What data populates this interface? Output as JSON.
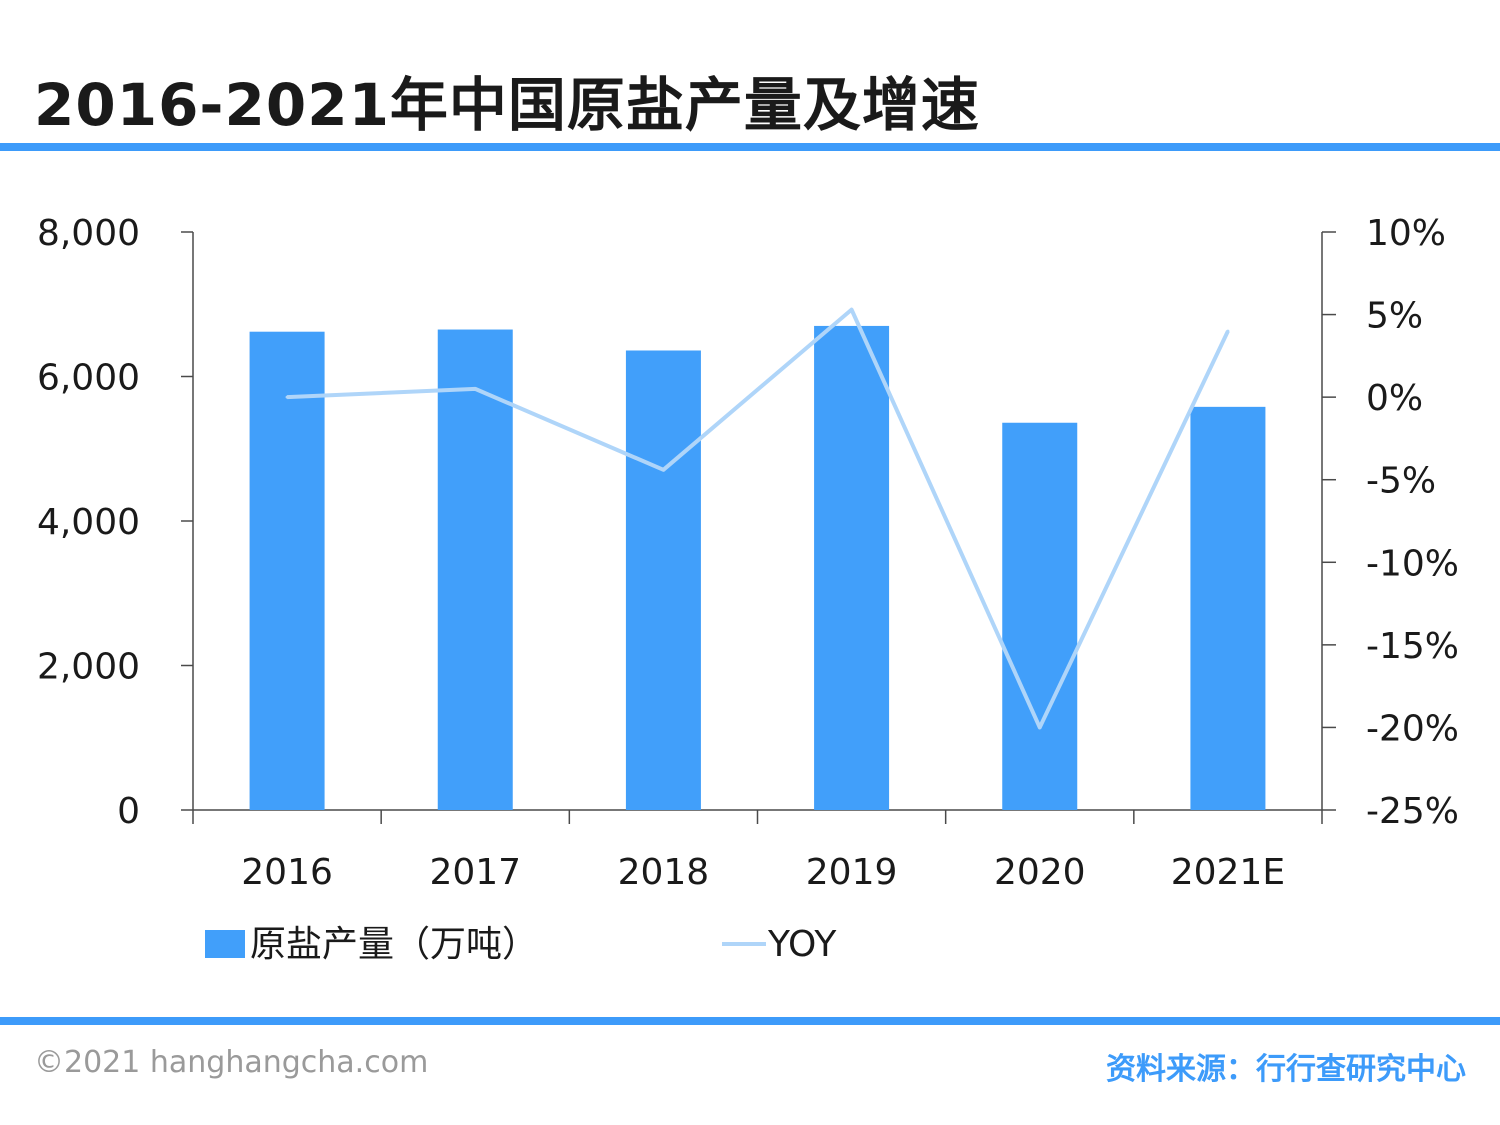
{
  "header": {
    "title": "2016-2021年中国原盐产量及增速"
  },
  "footer": {
    "copyright": "©2021 hanghangcha.com",
    "source": "资料来源：行行查研究中心"
  },
  "colors": {
    "accent": "#3d9bfa",
    "bar": "#419ffa",
    "line": "#afd5f9"
  },
  "chart_data": {
    "type": "bar",
    "title": "2016-2021年中国原盐产量及增速",
    "categories": [
      "2016",
      "2017",
      "2018",
      "2019",
      "2020",
      "2021E"
    ],
    "series": [
      {
        "name": "原盐产量（万吨）",
        "type": "bar",
        "axis": "left",
        "values": [
          6620,
          6650,
          6360,
          6700,
          5360,
          5580
        ]
      },
      {
        "name": "YOY",
        "type": "line",
        "axis": "right",
        "values": [
          0.0,
          0.5,
          -4.4,
          5.3,
          -20.0,
          4.0
        ]
      }
    ],
    "y_left": {
      "min": 0,
      "max": 8000,
      "ticks": [
        0,
        2000,
        4000,
        6000,
        8000
      ],
      "tick_labels": [
        "0",
        "2,000",
        "4,000",
        "6,000",
        "8,000"
      ]
    },
    "y_right": {
      "min": -25,
      "max": 10,
      "ticks": [
        -25,
        -20,
        -15,
        -10,
        -5,
        0,
        5,
        10
      ],
      "tick_labels": [
        "-25%",
        "-20%",
        "-15%",
        "-10%",
        "-5%",
        "0%",
        "5%",
        "10%"
      ]
    },
    "grid": false,
    "legend_position": "bottom-left"
  }
}
